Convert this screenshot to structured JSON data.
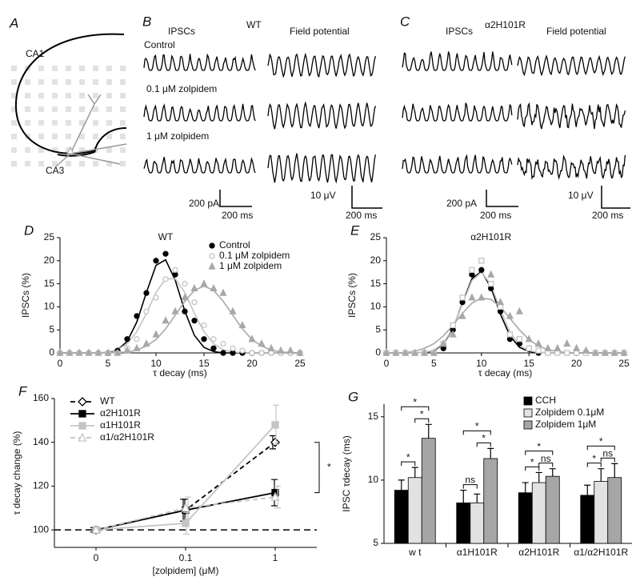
{
  "panel_a": {
    "label": "A",
    "ca1": "CA1",
    "ca3": "CA3"
  },
  "panel_b": {
    "label": "B",
    "genotype": "WT",
    "col_ipsc": "IPSCs",
    "col_field": "Field potential",
    "rows": [
      "Control",
      "0.1 μM zolpidem",
      "1 μM zolpidem"
    ],
    "scale_ipsc": {
      "y": "200 pA",
      "x": "200 ms"
    },
    "scale_field": {
      "y": "10 μV",
      "x": "200 ms"
    }
  },
  "panel_c": {
    "label": "C",
    "genotype": "α2H101R",
    "col_ipsc": "IPSCs",
    "col_field": "Field potential",
    "scale_ipsc": {
      "y": "200 pA",
      "x": "200 ms"
    },
    "scale_field": {
      "y": "10 μV",
      "x": "200 ms"
    }
  },
  "chart_data": [
    {
      "panel": "D",
      "type": "scatter",
      "title": "WT",
      "x_label": "τ decay  (ms)",
      "y_label": "IPSCs (%)",
      "x": [
        0,
        1,
        2,
        3,
        4,
        5,
        6,
        7,
        8,
        9,
        10,
        11,
        12,
        13,
        14,
        15,
        16,
        17,
        18,
        19,
        20,
        21,
        22,
        23,
        24,
        25
      ],
      "series": [
        {
          "name": "Control",
          "color": "#000000",
          "marker": "circle-filled",
          "values": [
            0,
            0,
            0,
            0,
            0,
            0,
            0.5,
            3,
            8,
            13,
            20,
            21.5,
            17,
            9,
            7,
            3,
            1,
            0,
            0,
            0,
            0,
            0,
            0,
            0,
            0,
            0
          ],
          "fit": [
            0,
            0,
            0,
            0,
            0,
            0.1,
            0.7,
            2.5,
            6.7,
            13.1,
            19.0,
            20.2,
            15.8,
            9.1,
            3.8,
            1.2,
            0.3,
            0,
            0,
            0,
            0,
            0,
            0,
            0,
            0,
            0
          ]
        },
        {
          "name": "0.1 μM zolpidem",
          "color": "#c4c4c4",
          "marker": "circle-open",
          "values": [
            0,
            0,
            0,
            0,
            0,
            0,
            0,
            1,
            3,
            9,
            12,
            16,
            18,
            15,
            11,
            6,
            3,
            2,
            1,
            0.5,
            0,
            0,
            0,
            0,
            0,
            0
          ],
          "fit": [
            0,
            0,
            0,
            0,
            0,
            0.2,
            0.7,
            2.0,
            4.6,
            8.6,
            13.1,
            16.1,
            16.1,
            13.1,
            8.6,
            4.6,
            2.0,
            0.7,
            0.2,
            0,
            0,
            0,
            0,
            0,
            0,
            0
          ]
        },
        {
          "name": "1 μM zolpidem",
          "color": "#a8a8a8",
          "marker": "triangle-filled",
          "values": [
            0,
            0,
            0,
            0,
            0,
            0,
            0,
            0.5,
            1,
            2,
            4,
            7,
            9,
            12,
            14,
            15,
            14,
            13,
            9,
            6,
            3,
            2,
            1,
            0.5,
            0.5,
            0
          ],
          "fit": [
            0,
            0,
            0,
            0,
            0,
            0,
            0.1,
            0.2,
            0.6,
            1.5,
            2.9,
            5.2,
            8.2,
            11.2,
            13.6,
            14.5,
            13.6,
            11.2,
            8.2,
            5.2,
            2.9,
            1.5,
            0.6,
            0.2,
            0.1,
            0
          ]
        }
      ],
      "xlim": [
        0,
        25
      ],
      "ylim": [
        0,
        25
      ],
      "xticks": [
        0,
        5,
        10,
        15,
        20,
        25
      ],
      "yticks": [
        0,
        5,
        10,
        15,
        20,
        25
      ],
      "legend": "upper right"
    },
    {
      "panel": "E",
      "type": "scatter",
      "title": "α2H101R",
      "x_label": "τ decay  (ms)",
      "y_label": "IPSCs (%)",
      "x": [
        0,
        1,
        2,
        3,
        4,
        5,
        6,
        7,
        8,
        9,
        10,
        11,
        12,
        13,
        14,
        15,
        16,
        17,
        18,
        19,
        20,
        21,
        22,
        23,
        24,
        25
      ],
      "series": [
        {
          "color": "#000000",
          "marker": "circle-filled",
          "values": [
            0,
            0,
            0,
            0,
            0,
            0,
            1,
            5,
            11,
            17,
            18,
            14,
            9,
            3,
            2,
            1,
            0,
            0,
            0,
            0,
            0,
            0,
            0,
            0,
            0,
            0
          ],
          "fit": [
            0,
            0,
            0,
            0,
            0.1,
            0.5,
            1.9,
            5.3,
            10.8,
            16.1,
            17.7,
            14.2,
            8.4,
            3.7,
            1.2,
            0.3,
            0.1,
            0,
            0,
            0,
            0,
            0,
            0,
            0,
            0,
            0
          ]
        },
        {
          "color": "#c4c4c4",
          "marker": "square-open",
          "values": [
            0,
            0,
            0,
            0,
            0,
            0,
            2,
            6,
            12,
            18,
            20,
            15,
            10,
            4,
            3,
            1,
            0.5,
            0,
            0,
            0,
            0,
            0,
            0,
            0,
            0,
            0
          ],
          "fit": [
            0,
            0,
            0,
            0,
            0.1,
            0.6,
            2.1,
            5.4,
            10.6,
            15.7,
            17.5,
            14.8,
            9.3,
            4.5,
            1.6,
            0.5,
            0.1,
            0,
            0,
            0,
            0,
            0,
            0,
            0,
            0,
            0
          ]
        },
        {
          "color": "#a8a8a8",
          "marker": "triangle-filled",
          "values": [
            0,
            0,
            0,
            0,
            0,
            0,
            2,
            4,
            8,
            12,
            12,
            17,
            11,
            8,
            9,
            3,
            2,
            1,
            1,
            2,
            1,
            0.5,
            0,
            0,
            0,
            0
          ],
          "fit": [
            0,
            0,
            0,
            0.4,
            1.0,
            2.0,
            3.7,
            6.0,
            8.6,
            10.8,
            11.9,
            11.6,
            10.0,
            7.5,
            5.0,
            2.9,
            1.5,
            0.7,
            0.3,
            0.1,
            0,
            0,
            0,
            0,
            0,
            0
          ]
        }
      ],
      "xlim": [
        0,
        25
      ],
      "ylim": [
        0,
        25
      ],
      "xticks": [
        0,
        5,
        10,
        15,
        20,
        25
      ],
      "yticks": [
        0,
        5,
        10,
        15,
        20,
        25
      ]
    },
    {
      "panel": "F",
      "type": "line",
      "x_label": "[zolpidem] (μM)",
      "y_label": "τ decay change (%)",
      "categories": [
        "0",
        "0.1",
        "1"
      ],
      "series": [
        {
          "name": "WT",
          "color": "#000000",
          "dashed": true,
          "marker": "diamond-open",
          "values": [
            100,
            109,
            140
          ],
          "errors": [
            1,
            5,
            3
          ]
        },
        {
          "name": "α2H101R",
          "color": "#000000",
          "dashed": false,
          "marker": "square-filled",
          "values": [
            100,
            109,
            117
          ],
          "errors": [
            1,
            5,
            6
          ]
        },
        {
          "name": "α1H101R",
          "color": "#c4c4c4",
          "dashed": false,
          "marker": "square-filled",
          "values": [
            100,
            103,
            148
          ],
          "errors": [
            1,
            5,
            9
          ]
        },
        {
          "name": "α1/α2H101R",
          "color": "#c4c4c4",
          "dashed": true,
          "marker": "triangle-open",
          "values": [
            100,
            110,
            115
          ],
          "errors": [
            1,
            5,
            5
          ]
        }
      ],
      "ylim": [
        92,
        160
      ],
      "yticks": [
        100,
        120,
        140,
        160
      ],
      "reference_line": 100,
      "legend": "upper left",
      "annotation": {
        "text": "*",
        "between": [
          0,
          1
        ]
      }
    },
    {
      "panel": "G",
      "type": "bar",
      "y_label": "IPSC τdecay (ms)",
      "categories": [
        "w t",
        "α1H101R",
        "α2H101R",
        "α1/α2H101R"
      ],
      "series": [
        {
          "name": "CCH",
          "color": "#000000",
          "values": [
            9.2,
            8.2,
            9.0,
            8.8
          ],
          "errors": [
            0.8,
            1.0,
            0.8,
            0.8
          ]
        },
        {
          "name": "Zolpidem 0.1μM",
          "color": "#e2e2e2",
          "values": [
            10.2,
            8.2,
            9.8,
            9.9
          ],
          "errors": [
            0.8,
            0.7,
            0.8,
            1.0
          ]
        },
        {
          "name": "Zolpidem 1μM",
          "color": "#a6a6a6",
          "values": [
            13.3,
            11.7,
            10.3,
            10.2
          ],
          "errors": [
            1.1,
            0.8,
            0.6,
            1.1
          ]
        }
      ],
      "ylim": [
        5,
        16
      ],
      "yticks": [
        5,
        10,
        15
      ],
      "legend": "upper right",
      "annotations": [
        {
          "category": 0,
          "between": [
            0,
            2
          ],
          "text": "*"
        },
        {
          "category": 0,
          "between": [
            0,
            1
          ],
          "text": "*"
        },
        {
          "category": 0,
          "between": [
            1,
            2
          ],
          "text": "*"
        },
        {
          "category": 1,
          "between": [
            0,
            2
          ],
          "text": "*"
        },
        {
          "category": 1,
          "between": [
            0,
            1
          ],
          "text": "ns"
        },
        {
          "category": 1,
          "between": [
            1,
            2
          ],
          "text": "*"
        },
        {
          "category": 2,
          "between": [
            0,
            2
          ],
          "text": "*"
        },
        {
          "category": 2,
          "between": [
            0,
            1
          ],
          "text": "*"
        },
        {
          "category": 2,
          "between": [
            1,
            2
          ],
          "text": "ns"
        },
        {
          "category": 3,
          "between": [
            0,
            2
          ],
          "text": "*"
        },
        {
          "category": 3,
          "between": [
            0,
            1
          ],
          "text": "*"
        },
        {
          "category": 3,
          "between": [
            1,
            2
          ],
          "text": "ns"
        }
      ]
    }
  ]
}
